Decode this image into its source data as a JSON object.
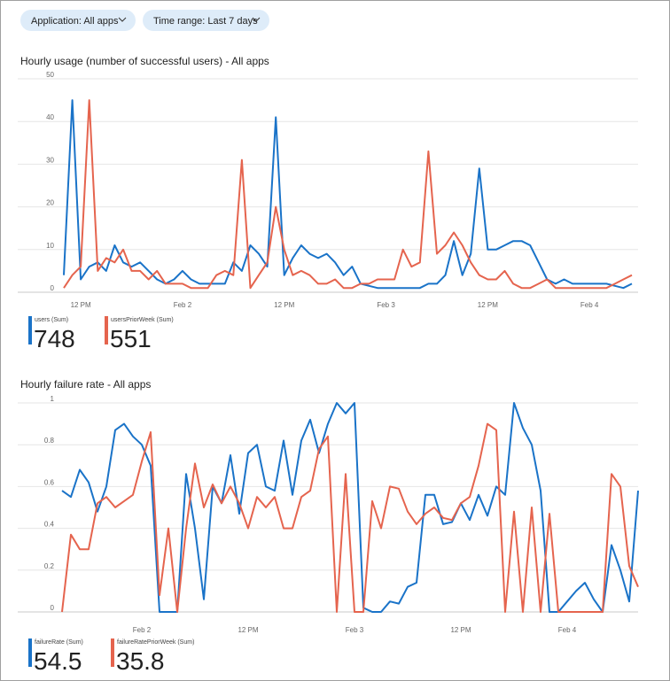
{
  "filters": [
    "Application: All apps",
    "Time range: Last 7 days"
  ],
  "chart_data": [
    {
      "type": "line",
      "title": "Hourly usage (number of successful users) - All apps",
      "categories": [
        null,
        null,
        "12 PM",
        null,
        null,
        null,
        null,
        null,
        null,
        null,
        null,
        null,
        null,
        null,
        "Feb 2",
        null,
        null,
        null,
        null,
        null,
        null,
        null,
        null,
        null,
        null,
        null,
        "12 PM",
        null,
        null,
        null,
        null,
        null,
        null,
        null,
        null,
        null,
        null,
        null,
        "Feb 3",
        null,
        null,
        null,
        null,
        null,
        null,
        null,
        null,
        null,
        null,
        null,
        "12 PM",
        null,
        null,
        null,
        null,
        null,
        null,
        null,
        null,
        null,
        null,
        null,
        "Feb 4",
        null,
        null,
        null,
        null,
        null
      ],
      "series": [
        {
          "name": "users (Sum)",
          "color": "#1a73c8",
          "total": 748,
          "values": [
            4,
            45,
            3,
            6,
            7,
            5,
            11,
            7,
            6,
            7,
            5,
            3,
            2,
            3,
            5,
            3,
            2,
            2,
            2,
            2,
            7,
            5,
            11,
            9,
            6,
            41,
            4,
            8,
            11,
            9,
            8,
            9,
            7,
            4,
            6,
            2,
            1.5,
            1,
            1,
            1,
            1,
            1,
            1,
            2,
            2,
            4,
            12,
            4,
            9,
            29,
            10,
            10,
            11,
            12,
            12,
            11,
            7,
            3,
            2,
            3,
            2,
            2,
            2,
            2,
            2,
            1.5,
            1,
            2
          ]
        },
        {
          "name": "usersPriorWeek (Sum)",
          "color": "#e5644e",
          "total": 551,
          "values": [
            1,
            4,
            6,
            45,
            5,
            8,
            7,
            10,
            5,
            5,
            3,
            5,
            2,
            2,
            2,
            1,
            1,
            1,
            4,
            5,
            4,
            31,
            1,
            4,
            7,
            20,
            10,
            4,
            5,
            4,
            2,
            2,
            3,
            1,
            1,
            2,
            2,
            3,
            3,
            3,
            10,
            6,
            7,
            33,
            9,
            11,
            14,
            11,
            7,
            4,
            3,
            3,
            5,
            2,
            1,
            1,
            2,
            3,
            1,
            1,
            1,
            1,
            1,
            1,
            1,
            2,
            3,
            4
          ]
        }
      ],
      "ylim": [
        0,
        50
      ],
      "yticks": [
        0,
        10,
        20,
        30,
        40,
        50
      ],
      "grid": true
    },
    {
      "type": "line",
      "title": "Hourly failure rate - All apps",
      "categories": [
        null,
        null,
        null,
        null,
        null,
        null,
        null,
        null,
        null,
        "Feb 2",
        null,
        null,
        null,
        null,
        null,
        null,
        null,
        null,
        null,
        null,
        null,
        "12 PM",
        null,
        null,
        null,
        null,
        null,
        null,
        null,
        null,
        null,
        null,
        null,
        "Feb 3",
        null,
        null,
        null,
        null,
        null,
        null,
        null,
        null,
        null,
        null,
        null,
        "12 PM",
        null,
        null,
        null,
        null,
        null,
        null,
        null,
        null,
        null,
        null,
        null,
        "Feb 4",
        null,
        null,
        null,
        null,
        null,
        null,
        null,
        null
      ],
      "series": [
        {
          "name": "failureRate (Sum)",
          "color": "#1a73c8",
          "total": 54.5,
          "values": [
            0.58,
            0.55,
            0.68,
            0.62,
            0.48,
            0.6,
            0.87,
            0.9,
            0.84,
            0.8,
            0.7,
            0,
            0,
            0,
            0.66,
            0.4,
            0.06,
            0.6,
            0.52,
            0.75,
            0.47,
            0.76,
            0.8,
            0.6,
            0.58,
            0.82,
            0.56,
            0.82,
            0.92,
            0.76,
            0.9,
            1,
            0.95,
            1,
            0.02,
            0,
            0,
            0.05,
            0.04,
            0.12,
            0.14,
            0.56,
            0.56,
            0.42,
            0.43,
            0.52,
            0.44,
            0.56,
            0.46,
            0.6,
            0.56,
            1,
            0.88,
            0.8,
            0.58,
            0,
            0,
            0.05,
            0.1,
            0.14,
            0.06,
            0,
            0.32,
            0.2,
            0.05,
            0.58
          ]
        },
        {
          "name": "failureRatePriorWeek (Sum)",
          "color": "#e5644e",
          "total": 35.8,
          "values": [
            0,
            0.37,
            0.3,
            0.3,
            0.52,
            0.55,
            0.5,
            0.53,
            0.56,
            0.72,
            0.86,
            0.08,
            0.4,
            0,
            0.4,
            0.71,
            0.5,
            0.61,
            0.52,
            0.6,
            0.52,
            0.4,
            0.55,
            0.5,
            0.55,
            0.4,
            0.4,
            0.55,
            0.58,
            0.78,
            0.84,
            0,
            0.66,
            0,
            0,
            0.53,
            0.4,
            0.6,
            0.59,
            0.48,
            0.42,
            0.47,
            0.5,
            0.45,
            0.44,
            0.52,
            0.55,
            0.7,
            0.9,
            0.87,
            0,
            0.48,
            0,
            0.5,
            0,
            0.47,
            0,
            0,
            0,
            0,
            0,
            0,
            0.66,
            0.6,
            0.22,
            0.12
          ]
        }
      ],
      "ylim": [
        0,
        1
      ],
      "yticks": [
        0,
        0.2,
        0.4,
        0.6,
        0.8,
        1
      ],
      "grid": true
    }
  ]
}
